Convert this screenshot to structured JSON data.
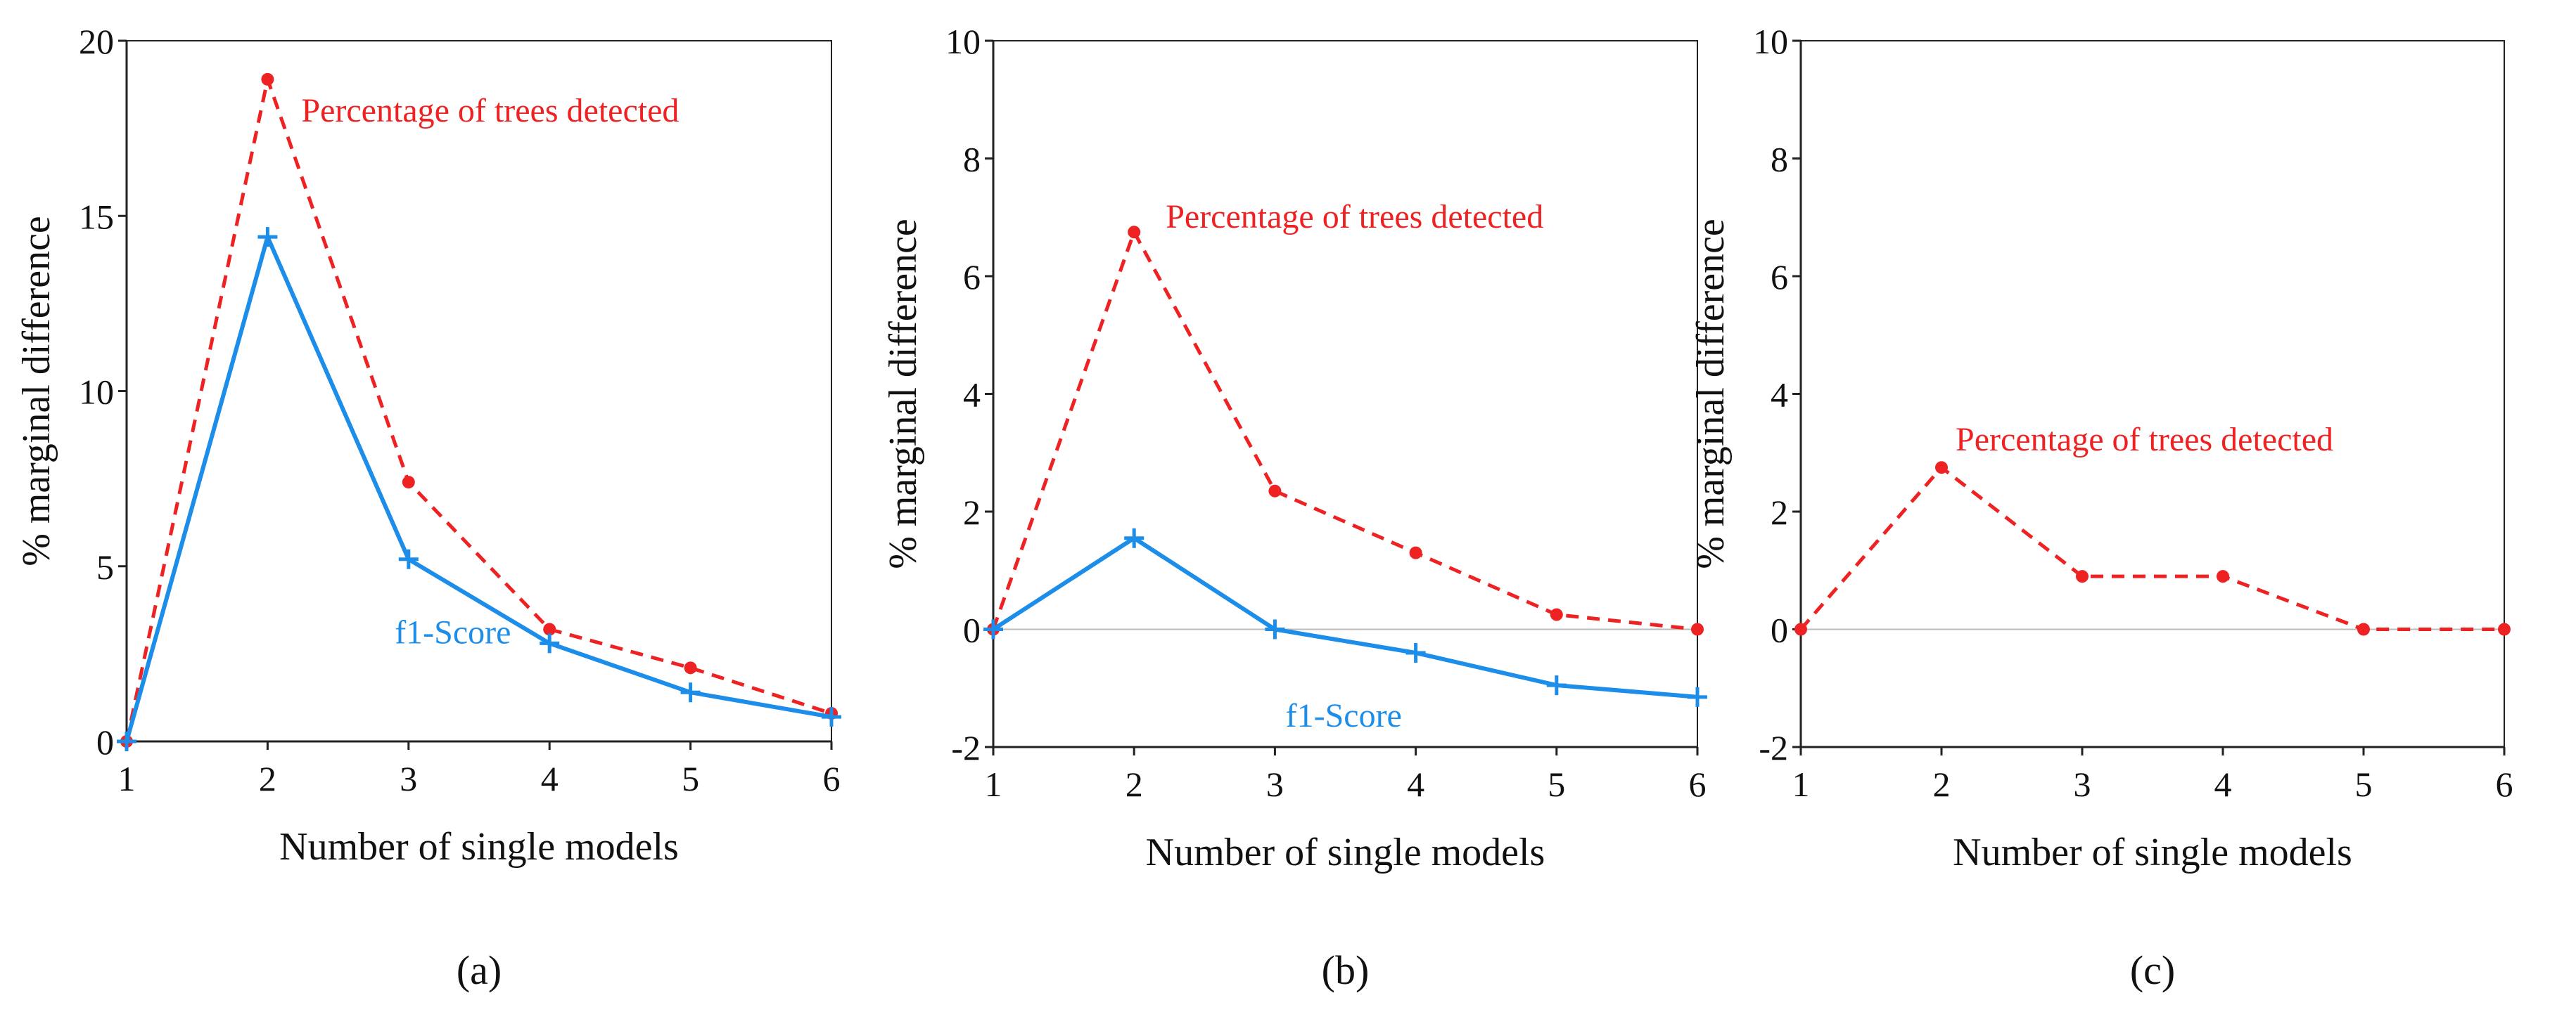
{
  "colors": {
    "red": "#ee2222",
    "blue": "#1c8de8",
    "axis": "#222222",
    "zero": "#bbbbbb",
    "text": "#111111"
  },
  "chart_data": [
    {
      "type": "line",
      "panel_label": "(a)",
      "xlabel": "Number of single models",
      "ylabel": "% marginal difference",
      "x": [
        1,
        2,
        3,
        4,
        5,
        6
      ],
      "xlim": [
        1,
        6
      ],
      "ylim": [
        0,
        20
      ],
      "yticks": [
        0,
        5,
        10,
        15,
        20
      ],
      "xticks": [
        1,
        2,
        3,
        4,
        5,
        6
      ],
      "series": [
        {
          "name": "Percentage of trees detected",
          "style": "dashed",
          "marker": "dot",
          "values": [
            0,
            18.9,
            7.4,
            3.2,
            2.1,
            0.8
          ],
          "label_at": 2
        },
        {
          "name": "f1-Score",
          "style": "solid",
          "marker": "plus",
          "values": [
            0,
            14.4,
            5.2,
            2.8,
            1.4,
            0.7
          ],
          "label_at": 4
        }
      ]
    },
    {
      "type": "line",
      "panel_label": "(b)",
      "xlabel": "Number of single models",
      "ylabel": "% marginal difference",
      "x": [
        1,
        2,
        3,
        4,
        5,
        6
      ],
      "xlim": [
        1,
        6
      ],
      "ylim": [
        -2,
        10
      ],
      "yticks": [
        -2,
        0,
        2,
        4,
        6,
        8,
        10
      ],
      "xticks": [
        1,
        2,
        3,
        4,
        5,
        6
      ],
      "series": [
        {
          "name": "Percentage of trees detected",
          "style": "dashed",
          "marker": "dot",
          "values": [
            0,
            6.75,
            2.35,
            1.3,
            0.25,
            0
          ],
          "label_at": 2
        },
        {
          "name": "f1-Score",
          "style": "solid",
          "marker": "plus",
          "values": [
            0,
            1.55,
            0,
            -0.4,
            -0.95,
            -1.15
          ],
          "label_at": 4
        }
      ]
    },
    {
      "type": "line",
      "panel_label": "(c)",
      "xlabel": "Number of single models",
      "ylabel": "% marginal difference",
      "x": [
        1,
        2,
        3,
        4,
        5,
        6
      ],
      "xlim": [
        1,
        6
      ],
      "ylim": [
        -2,
        10
      ],
      "yticks": [
        -2,
        0,
        2,
        4,
        6,
        8,
        10
      ],
      "xticks": [
        1,
        2,
        3,
        4,
        5,
        6
      ],
      "series": [
        {
          "name": "Percentage of trees detected",
          "style": "dashed",
          "marker": "dot",
          "values": [
            0,
            2.75,
            0.9,
            0.9,
            0,
            0
          ],
          "label_at": 2
        }
      ]
    }
  ]
}
